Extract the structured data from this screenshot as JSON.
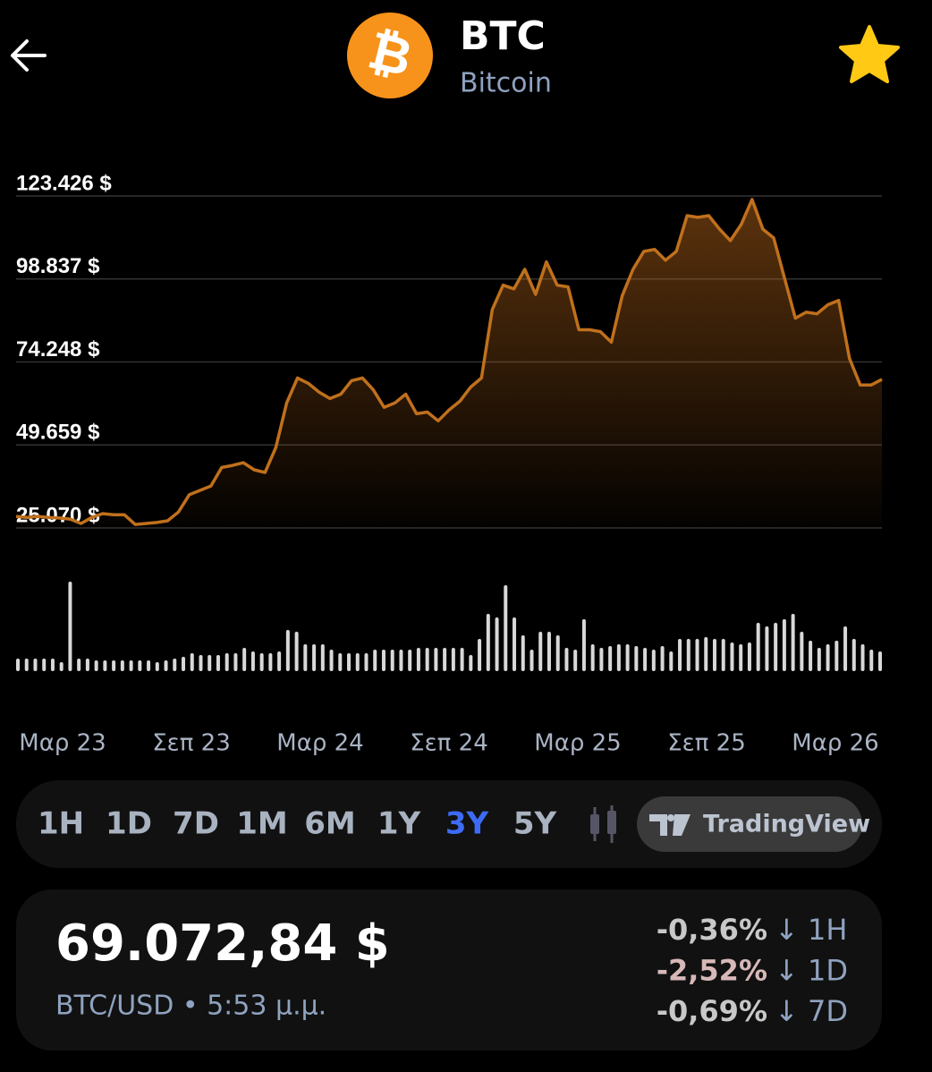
{
  "header": {
    "symbol": "BTC",
    "name": "Bitcoin"
  },
  "chart_data": {
    "type": "area",
    "color": "#c0701c",
    "values": [
      28500,
      28200,
      28500,
      28200,
      28000,
      27700,
      26400,
      28200,
      29300,
      29000,
      29000,
      26100,
      26400,
      26700,
      27200,
      29800,
      34900,
      36200,
      37500,
      43000,
      43600,
      44400,
      42300,
      41500,
      48900,
      62100,
      69500,
      67900,
      65300,
      63400,
      64700,
      68700,
      69500,
      66000,
      60800,
      62100,
      64700,
      58900,
      59400,
      56800,
      60000,
      62600,
      66800,
      69500,
      89800,
      97000,
      95900,
      101700,
      94300,
      103900,
      97000,
      96500,
      83800,
      83800,
      83200,
      80100,
      93800,
      101700,
      107000,
      107600,
      104400,
      107000,
      117600,
      117100,
      117600,
      113600,
      110200,
      115000,
      122400,
      113600,
      111000,
      99100,
      87200,
      89000,
      88500,
      91200,
      92500,
      75300,
      67400,
      67400,
      69100
    ],
    "ylim": [
      25070,
      123426
    ],
    "yticks": [
      {
        "value": 123426,
        "label": "123.426 $"
      },
      {
        "value": 98837,
        "label": "98.837 $"
      },
      {
        "value": 74248,
        "label": "74.248 $"
      },
      {
        "value": 49659,
        "label": "49.659 $"
      },
      {
        "value": 25070,
        "label": "25.070 $"
      }
    ],
    "grid": true,
    "xlabels": [
      "Μαρ 23",
      "Σεπ 23",
      "Μαρ 24",
      "Σεπ 24",
      "Μαρ 25",
      "Σεπ 25",
      "Μαρ 26"
    ]
  },
  "volume": {
    "color": "#d8d8d8",
    "values": [
      14,
      14,
      14,
      14,
      14,
      10,
      100,
      14,
      14,
      12,
      12,
      12,
      12,
      12,
      12,
      12,
      10,
      12,
      14,
      16,
      20,
      18,
      18,
      18,
      20,
      20,
      26,
      22,
      20,
      20,
      22,
      46,
      44,
      30,
      30,
      30,
      24,
      20,
      20,
      20,
      20,
      24,
      24,
      24,
      24,
      24,
      26,
      26,
      26,
      26,
      26,
      26,
      18,
      36,
      64,
      60,
      96,
      60,
      40,
      24,
      44,
      44,
      40,
      26,
      24,
      58,
      30,
      26,
      28,
      30,
      30,
      28,
      26,
      24,
      28,
      22,
      36,
      36,
      36,
      38,
      36,
      36,
      32,
      30,
      32,
      54,
      50,
      54,
      58,
      64,
      44,
      34,
      26,
      30,
      34,
      50,
      36,
      30,
      24,
      22
    ]
  },
  "ranges": {
    "buttons": [
      "1H",
      "1D",
      "7D",
      "1M",
      "6M",
      "1Y",
      "3Y",
      "5Y"
    ],
    "active": "3Y",
    "tradingview": "TradingView"
  },
  "price": {
    "value": "69.072,84 $",
    "pair": "BTC/USD • 5:53 μ.μ.",
    "changes": [
      {
        "pct": "-0,36%",
        "period": "↓ 1H"
      },
      {
        "pct": "-2,52%",
        "period": "↓ 1D"
      },
      {
        "pct": "-0,69%",
        "period": "↓ 7D"
      }
    ]
  }
}
